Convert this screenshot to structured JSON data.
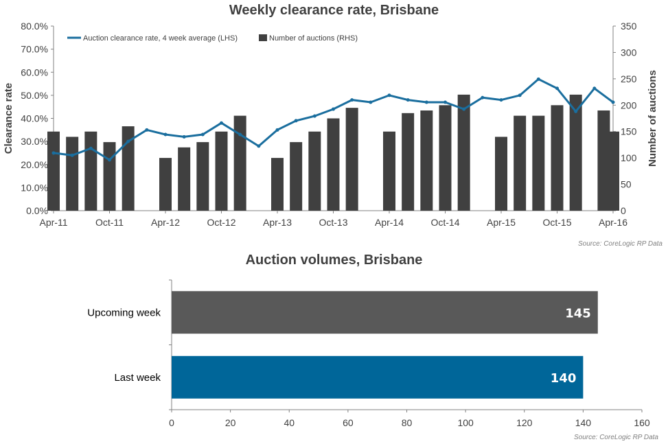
{
  "chart_data": [
    {
      "type": "line+bar",
      "title": "Weekly clearance rate, Brisbane",
      "ylabel": "Clearance rate",
      "y2label": "Number of auctions",
      "ylim": [
        0,
        80
      ],
      "y2lim": [
        0,
        350
      ],
      "yticks": [
        "0.0%",
        "10.0%",
        "20.0%",
        "30.0%",
        "40.0%",
        "50.0%",
        "60.0%",
        "70.0%",
        "80.0%"
      ],
      "y2ticks": [
        "0",
        "50",
        "100",
        "150",
        "200",
        "250",
        "300",
        "350"
      ],
      "xticks": [
        "Apr-11",
        "Oct-11",
        "Apr-12",
        "Oct-12",
        "Apr-13",
        "Oct-13",
        "Apr-14",
        "Oct-14",
        "Apr-15",
        "Oct-15",
        "Apr-16"
      ],
      "legend": [
        "Auction clearance rate, 4 week average (LHS)",
        "Number of auctions (RHS)"
      ],
      "legend_position": "top-left",
      "colors": {
        "line": "#1a6e9e",
        "bars": "#404040"
      },
      "source": "Source: CoreLogic  RP Data",
      "series": [
        {
          "name": "Auction clearance rate, 4 week average (LHS)",
          "points": [
            [
              "Apr-11",
              25
            ],
            [
              "Jun-11",
              24
            ],
            [
              "Aug-11",
              27
            ],
            [
              "Oct-11",
              22
            ],
            [
              "Dec-11",
              30
            ],
            [
              "Feb-12",
              35
            ],
            [
              "Apr-12",
              33
            ],
            [
              "Jun-12",
              32
            ],
            [
              "Aug-12",
              33
            ],
            [
              "Oct-12",
              38
            ],
            [
              "Dec-12",
              33
            ],
            [
              "Feb-13",
              28
            ],
            [
              "Apr-13",
              35
            ],
            [
              "Jun-13",
              39
            ],
            [
              "Aug-13",
              41
            ],
            [
              "Oct-13",
              44
            ],
            [
              "Dec-13",
              48
            ],
            [
              "Feb-14",
              47
            ],
            [
              "Apr-14",
              50
            ],
            [
              "Jun-14",
              48
            ],
            [
              "Aug-14",
              47
            ],
            [
              "Oct-14",
              47
            ],
            [
              "Dec-14",
              44
            ],
            [
              "Feb-15",
              49
            ],
            [
              "Apr-15",
              48
            ],
            [
              "Jun-15",
              50
            ],
            [
              "Aug-15",
              57
            ],
            [
              "Oct-15",
              53
            ],
            [
              "Dec-15",
              43
            ],
            [
              "Feb-16",
              53
            ],
            [
              "Apr-16",
              47
            ]
          ]
        },
        {
          "name": "Number of auctions (RHS)",
          "points": [
            [
              "Apr-11",
              150
            ],
            [
              "Jun-11",
              140
            ],
            [
              "Aug-11",
              150
            ],
            [
              "Oct-11",
              130
            ],
            [
              "Dec-11",
              160
            ],
            [
              "Apr-12",
              100
            ],
            [
              "Jun-12",
              120
            ],
            [
              "Aug-12",
              130
            ],
            [
              "Oct-12",
              150
            ],
            [
              "Dec-12",
              180
            ],
            [
              "Apr-13",
              100
            ],
            [
              "Jun-13",
              130
            ],
            [
              "Aug-13",
              150
            ],
            [
              "Oct-13",
              175
            ],
            [
              "Dec-13",
              195
            ],
            [
              "Apr-14",
              150
            ],
            [
              "Jun-14",
              185
            ],
            [
              "Aug-14",
              190
            ],
            [
              "Oct-14",
              200
            ],
            [
              "Dec-14",
              220
            ],
            [
              "Apr-15",
              140
            ],
            [
              "Jun-15",
              180
            ],
            [
              "Aug-15",
              180
            ],
            [
              "Oct-15",
              200
            ],
            [
              "Dec-15",
              220
            ],
            [
              "Mar-16",
              190
            ],
            [
              "Apr-16",
              150
            ]
          ]
        }
      ]
    },
    {
      "type": "bar",
      "orientation": "horizontal",
      "title": "Auction volumes, Brisbane",
      "categories": [
        "Upcoming week",
        "Last week"
      ],
      "values": [
        145,
        140
      ],
      "value_labels": [
        "145",
        "140"
      ],
      "xlim": [
        0,
        160
      ],
      "xticks": [
        "0",
        "20",
        "40",
        "60",
        "80",
        "100",
        "120",
        "140",
        "160"
      ],
      "colors": [
        "#595959",
        "#006699"
      ],
      "source": "Source: CoreLogic  RP Data"
    }
  ]
}
